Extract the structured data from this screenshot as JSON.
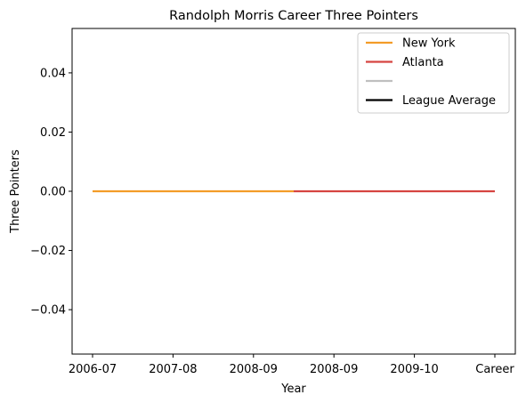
{
  "chart_data": {
    "type": "line",
    "title": "Randolph Morris Career Three Pointers",
    "xlabel": "Year",
    "ylabel": "Three Pointers",
    "categories": [
      "2006-07",
      "2007-08",
      "2008-09",
      "2008-09",
      "2009-10",
      "Career"
    ],
    "ylim": [
      -0.055,
      0.055
    ],
    "yticks": [
      -0.04,
      -0.02,
      0.0,
      0.02,
      0.04
    ],
    "ytick_labels": [
      "−0.04",
      "−0.02",
      "0.00",
      "0.02",
      "0.04"
    ],
    "grid": false,
    "legend_position": "top-right",
    "series": [
      {
        "name": "New York",
        "color": "#f39c28",
        "x": [
          0,
          1,
          2,
          2.5
        ],
        "values": [
          0,
          0,
          0,
          0
        ]
      },
      {
        "name": "Atlanta",
        "color": "#d64541",
        "x": [
          2.5,
          3,
          4,
          5
        ],
        "values": [
          0,
          0,
          0,
          0
        ]
      },
      {
        "name": "",
        "color": "#bfbfbf",
        "x": [],
        "values": []
      },
      {
        "name": "League Average",
        "color": "#000000",
        "x": [],
        "values": []
      }
    ]
  }
}
